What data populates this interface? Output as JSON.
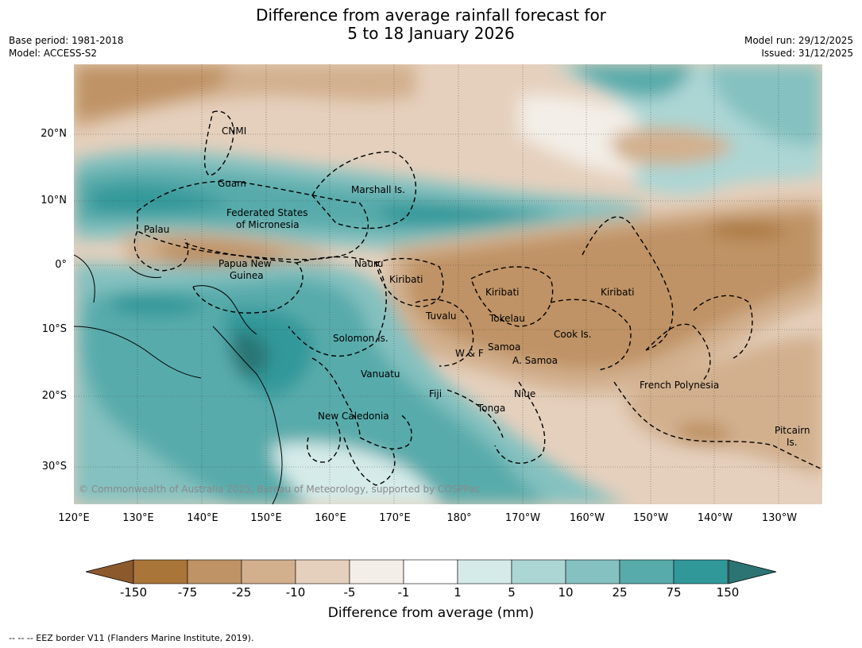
{
  "header": {
    "title_line1": "Difference from average rainfall forecast for",
    "title_line2": "5 to 18 January 2026",
    "base_period": "Base period: 1981-2018",
    "model": "Model: ACCESS-S2",
    "model_run": "Model run: 29/12/2025",
    "issued": "Issued: 31/12/2025"
  },
  "map": {
    "lon_ticks": [
      "120°E",
      "130°E",
      "140°E",
      "150°E",
      "160°E",
      "170°E",
      "180°",
      "170°W",
      "160°W",
      "150°W",
      "140°W",
      "130°W"
    ],
    "lat_ticks": [
      "20°N",
      "10°N",
      "0°",
      "10°S",
      "20°S",
      "30°S"
    ],
    "regions": {
      "cnmi": "CNMI",
      "guam": "Guam",
      "marshall": "Marshall Is.",
      "fsm_1": "Federated States",
      "fsm_2": "of Micronesia",
      "palau": "Palau",
      "png_1": "Papua New",
      "png_2": "Guinea",
      "nauru": "Nauru",
      "kiribati_w": "Kiribati",
      "kiribati_c": "Kiribati",
      "kiribati_e": "Kiribati",
      "tuvalu": "Tuvalu",
      "tokelau": "Tokelau",
      "cook": "Cook Is.",
      "solomon": "Solomon Is.",
      "samoa": "Samoa",
      "wf": "W & F",
      "asamoa": "A. Samoa",
      "vanuatu": "Vanuatu",
      "fiji": "Fiji",
      "niue": "Niue",
      "tonga": "Tonga",
      "newcal": "New Caledonia",
      "frpoly": "French Polynesia",
      "pitcairn_1": "Pitcairn",
      "pitcairn_2": "Is."
    },
    "copyright": "© Commonwealth of Australia 2025, Bureau of Meteorology, supported by COSPPac"
  },
  "colorbar": {
    "ticks": [
      "-150",
      "-75",
      "-25",
      "-10",
      "-5",
      "-1",
      "1",
      "5",
      "10",
      "25",
      "75",
      "150"
    ],
    "colors": [
      "#a97539",
      "#bf9365",
      "#d2b08e",
      "#e5d0bd",
      "#f3eee7",
      "#ffffff",
      "#d5ebe9",
      "#acd6d4",
      "#84c1c0",
      "#58abab",
      "#31989a"
    ],
    "under_color": "#8c592d",
    "over_color": "#2b7473",
    "label": "Difference from average (mm)"
  },
  "footnote": "--  --  -- EEZ border V11 (Flanders Marine Institute, 2019)."
}
